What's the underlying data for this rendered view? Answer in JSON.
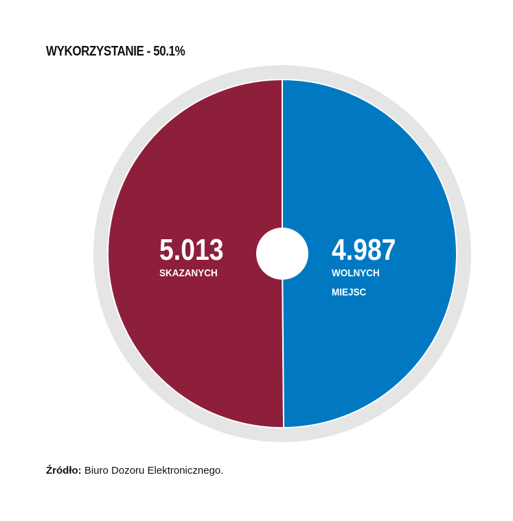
{
  "chart_data": {
    "type": "pie",
    "title": "WYKORZYSTANIE - 50.1%",
    "categories": [
      "SKAZANYCH",
      "WOLNYCH MIEJSC"
    ],
    "values": [
      5013,
      4987
    ],
    "value_labels": [
      "5.013",
      "4.987"
    ],
    "colors": [
      "#8e1f3b",
      "#0079c2"
    ],
    "source_label": "Źródło:",
    "source_text": "Biuro Dozoru Elektronicznego."
  }
}
